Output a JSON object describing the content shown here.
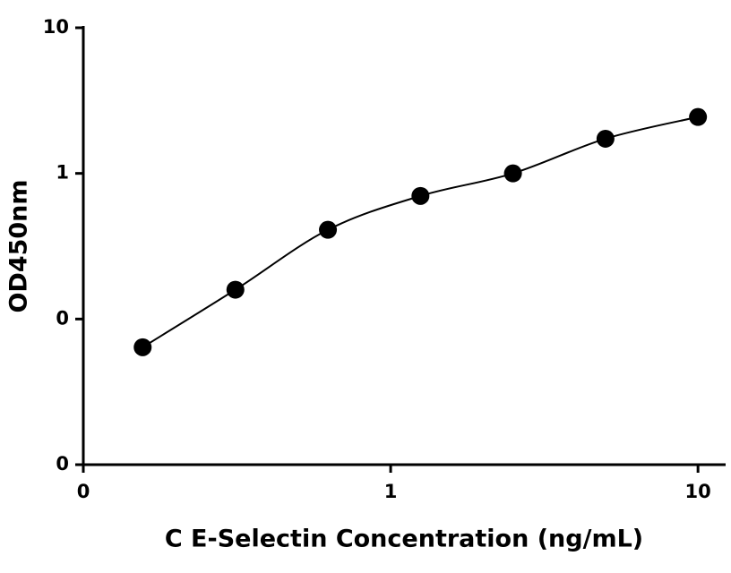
{
  "chart_data": {
    "type": "scatter",
    "xlabel": "C E-Selectin Concentration (ng/mL)",
    "ylabel": "OD450nm",
    "x": [
      0.156,
      0.3125,
      0.625,
      1.25,
      2.5,
      5,
      10
    ],
    "series": [
      {
        "color": "#000000",
        "values": [
          0.064,
          0.159,
          0.41,
          0.7,
          1.0,
          1.73,
          2.44
        ]
      }
    ],
    "xscale": "log",
    "yscale": "log",
    "xlim": [
      0.1,
      12.3
    ],
    "ylim": [
      0.01,
      10
    ],
    "xticks": [
      {
        "value": 0.1,
        "label": "0"
      },
      1,
      10
    ],
    "yticks": [
      {
        "value": 0.01,
        "label": "0"
      },
      {
        "value": 0.1,
        "label": "0"
      },
      1,
      10
    ],
    "fit_line": true
  }
}
